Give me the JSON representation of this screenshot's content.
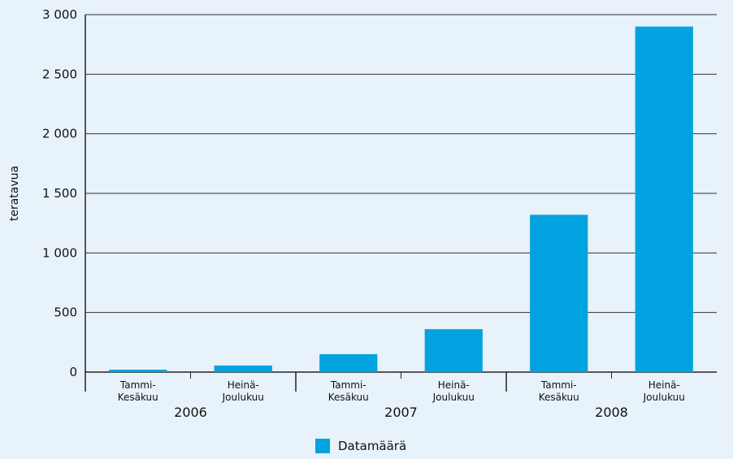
{
  "colors": {
    "bar": "#00a3e0",
    "grid": "#333333",
    "background": "#e8f2fa"
  },
  "chart_data": {
    "type": "bar",
    "ylabel": "teratavua",
    "ylim": [
      0,
      3000
    ],
    "yticks": [
      {
        "value": 0,
        "label": "0"
      },
      {
        "value": 500,
        "label": "500"
      },
      {
        "value": 1000,
        "label": "1 000"
      },
      {
        "value": 1500,
        "label": "1 500"
      },
      {
        "value": 2000,
        "label": "2 000"
      },
      {
        "value": 2500,
        "label": "2 500"
      },
      {
        "value": 3000,
        "label": "3 000"
      }
    ],
    "grid": true,
    "legend_position": "bottom-center",
    "groups": [
      {
        "year": "2006",
        "categories": [
          "Tammi-\nKesäkuu",
          "Heinä-\nJoulukuu"
        ],
        "values": [
          20,
          55
        ]
      },
      {
        "year": "2007",
        "categories": [
          "Tammi-\nKesäkuu",
          "Heinä-\nJoulukuu"
        ],
        "values": [
          150,
          360
        ]
      },
      {
        "year": "2008",
        "categories": [
          "Tammi-\nKesäkuu",
          "Heinä-\nJoulukuu"
        ],
        "values": [
          1320,
          2900
        ]
      }
    ],
    "series": [
      {
        "name": "Datamäärä"
      }
    ]
  }
}
